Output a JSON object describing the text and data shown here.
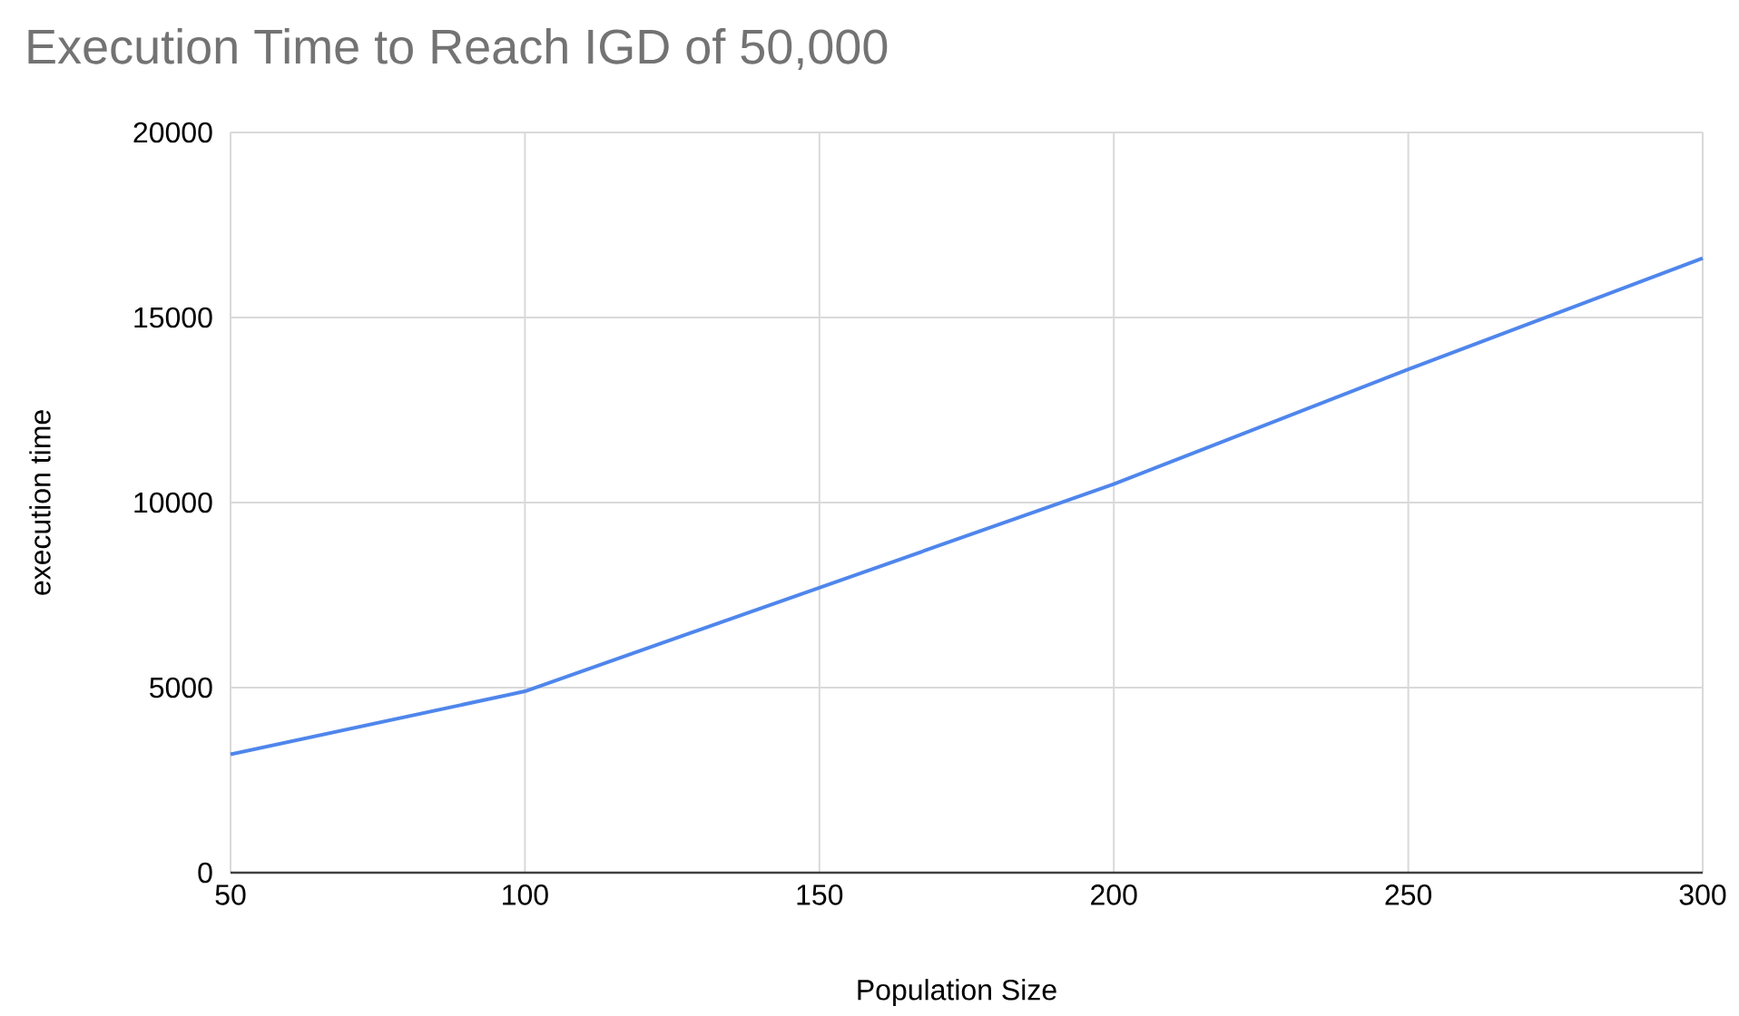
{
  "chart_data": {
    "type": "line",
    "title": "Execution Time to Reach IGD of 50,000",
    "xlabel": "Population Size",
    "ylabel": "execution time",
    "x": [
      50,
      100,
      150,
      200,
      250,
      300
    ],
    "series": [
      {
        "color": "#4f86ec",
        "values": [
          3200,
          4900,
          7700,
          10500,
          13600,
          16600
        ]
      }
    ],
    "xlim": [
      50,
      300
    ],
    "ylim": [
      0,
      20000
    ],
    "xticks": [
      50,
      100,
      150,
      200,
      250,
      300
    ],
    "yticks": [
      0,
      5000,
      10000,
      15000,
      20000
    ],
    "grid": true,
    "marker": "none",
    "line_style": "solid"
  }
}
